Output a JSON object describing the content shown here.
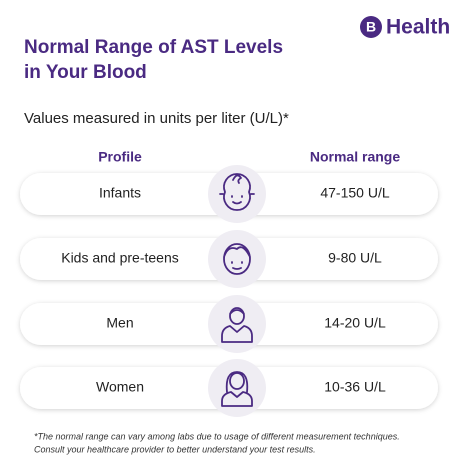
{
  "brand": {
    "mark": "B",
    "name": "Health"
  },
  "title": [
    "Normal Range of AST Levels",
    "in Your Blood"
  ],
  "subtitle": "Values measured in units per liter (U/L)*",
  "table": {
    "headers": [
      "Profile",
      "Normal range"
    ],
    "rows": [
      [
        "Infants",
        "47-150 U/L"
      ],
      [
        "Kids and pre-teens",
        "9-80 U/L"
      ],
      [
        "Men",
        "14-20 U/L"
      ],
      [
        "Women",
        "10-36 U/L"
      ]
    ]
  },
  "footnote": [
    "*The normal range can vary among labs due to usage of different measurement techniques.",
    "Consult your healthcare provider to better understand your test results."
  ]
}
